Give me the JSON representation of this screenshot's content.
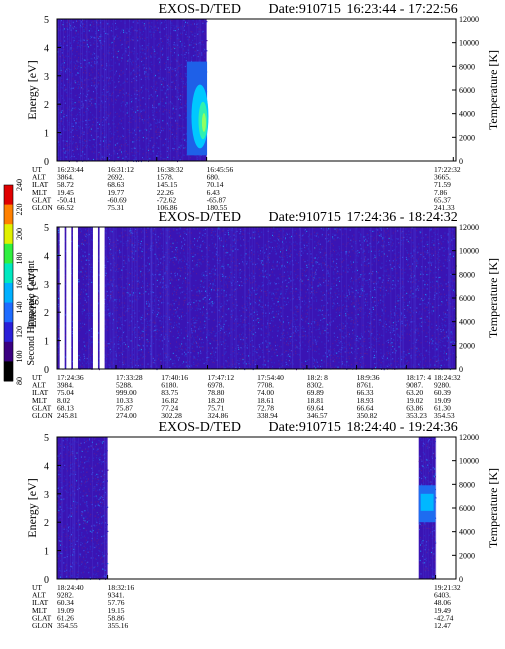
{
  "chart_data": [
    {
      "type": "heatmap",
      "title": "EXOS-D/TED",
      "date_label": "Date:910715",
      "time_range": "16:23:44 - 17:22:56",
      "ylabel": "Energy [eV]",
      "y2label": "Temperature [K]",
      "ylim": [
        0,
        5
      ],
      "y2lim": [
        0,
        12000
      ],
      "yticks": [
        "0",
        "1",
        "2",
        "3",
        "4",
        "5"
      ],
      "y2ticks": [
        "0",
        "2000",
        "4000",
        "6000",
        "8000",
        "10000",
        "12000"
      ],
      "data_coverage": {
        "start": "16:23:44",
        "end": "16:45:56"
      },
      "enhancement": {
        "time_from": "16:43",
        "time_to": "16:46",
        "energy_from": 0.2,
        "energy_to": 3.5
      },
      "table": {
        "row_labels": [
          "UT",
          "ALT",
          "ILAT",
          "MLT",
          "GLAT",
          "GLON"
        ],
        "columns": [
          [
            "16:23:44",
            "3864.",
            "58.72",
            "19.45",
            "-50.41",
            "66.52"
          ],
          [
            "16:31:12",
            "2692.",
            "68.63",
            "19.77",
            "-60.69",
            "75.31"
          ],
          [
            "16:38:32",
            "1578.",
            "145.15",
            "22.26",
            "-72.62",
            "106.86"
          ],
          [
            "16:45:56",
            "680.",
            "70.14",
            "6.43",
            "-65.87",
            "180.55"
          ],
          [
            "17:22:32",
            "3665.",
            "71.59",
            "7.86",
            "65.37",
            "241.33"
          ]
        ]
      }
    },
    {
      "type": "heatmap",
      "title": "EXOS-D/TED",
      "date_label": "Date:910715",
      "time_range": "17:24:36 - 18:24:32",
      "ylabel": "Energy [eV]",
      "y2label": "Temperature [K]",
      "ylim": [
        0,
        5
      ],
      "y2lim": [
        0,
        12000
      ],
      "yticks": [
        "0",
        "1",
        "2",
        "3",
        "4",
        "5"
      ],
      "y2ticks": [
        "0",
        "2000",
        "4000",
        "6000",
        "8000",
        "10000",
        "12000"
      ],
      "data_gaps": [
        "17:25",
        "17:26",
        "17:27",
        "17:30",
        "17:31"
      ],
      "table": {
        "row_labels": [
          "UT",
          "ALT",
          "ILAT",
          "MLT",
          "GLAT",
          "GLON"
        ],
        "columns": [
          [
            "17:24:36",
            "3984.",
            "75.04",
            "8.02",
            "68.13",
            "245.81"
          ],
          [
            "17:33:28",
            "5288.",
            "999.00",
            "10.33",
            "75.87",
            "274.00"
          ],
          [
            "17:40:16",
            "6180.",
            "83.75",
            "16.82",
            "77.24",
            "302.28"
          ],
          [
            "17:47:12",
            "6978.",
            "78.80",
            "18.20",
            "75.71",
            "324.86"
          ],
          [
            "17:54:40",
            "7708.",
            "74.00",
            "18.61",
            "72.78",
            "338.94"
          ],
          [
            "18:2: 8",
            "8302.",
            "69.89",
            "18.81",
            "69.64",
            "346.57"
          ],
          [
            "18:9:36",
            "8761.",
            "66.33",
            "18.93",
            "66.64",
            "350.82"
          ],
          [
            "18:17: 4",
            "9087.",
            "63.20",
            "19.02",
            "63.86",
            "353.23"
          ],
          [
            "18:24:32",
            "9280.",
            "60.39",
            "19.09",
            "61.30",
            "354.53"
          ]
        ]
      }
    },
    {
      "type": "heatmap",
      "title": "EXOS-D/TED",
      "date_label": "Date:910715",
      "time_range": "18:24:40 - 19:24:36",
      "ylabel": "Energy [eV]",
      "y2label": "Temperature [K]",
      "ylim": [
        0,
        5
      ],
      "y2lim": [
        0,
        12000
      ],
      "yticks": [
        "0",
        "1",
        "2",
        "3",
        "4",
        "5"
      ],
      "y2ticks": [
        "0",
        "2000",
        "4000",
        "6000",
        "8000",
        "10000",
        "12000"
      ],
      "data_coverage": [
        {
          "start": "18:24:40",
          "end": "18:32:16"
        },
        {
          "start": "19:19",
          "end": "19:21:32"
        }
      ],
      "table": {
        "row_labels": [
          "UT",
          "ALT",
          "ILAT",
          "MLT",
          "GLAT",
          "GLON"
        ],
        "columns": [
          [
            "18:24:40",
            "9282.",
            "60.34",
            "19.09",
            "61.26",
            "354.55"
          ],
          [
            "18:32:16",
            "9341.",
            "57.76",
            "19.15",
            "58.86",
            "355.16"
          ],
          [
            "19:21:32",
            "6403.",
            "48.06",
            "19.49",
            "-42.74",
            "12.47"
          ]
        ]
      }
    }
  ],
  "colorbar": {
    "label": "Second Harmonic Current",
    "ticks": [
      "80",
      "100",
      "120",
      "140",
      "160",
      "180",
      "200",
      "220",
      "240"
    ],
    "colors": [
      "#000000",
      "#3a0080",
      "#2a1fd8",
      "#1f6cff",
      "#00b0ff",
      "#00e8c0",
      "#30f040",
      "#e0f000",
      "#ff8000",
      "#e00000"
    ]
  }
}
